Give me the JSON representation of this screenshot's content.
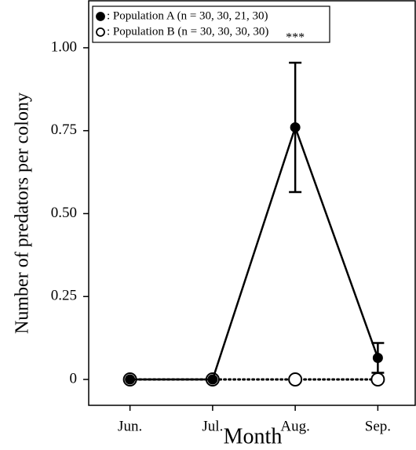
{
  "chart_data": {
    "type": "line",
    "x_label": "Month",
    "y_label": "Number of predators per colony",
    "categories": [
      "Jun.",
      "Jul.",
      "Aug.",
      "Sep."
    ],
    "series": [
      {
        "name": ": Population A (n = 30, 30, 21, 30)",
        "color": "#000000",
        "marker": "filled",
        "line_style": "solid",
        "values": [
          0,
          0,
          0.76,
          0.065
        ],
        "errors": [
          0,
          0,
          0.195,
          0.045
        ]
      },
      {
        "name": ": Population B (n = 30, 30, 30, 30)",
        "color": "#000000",
        "marker": "open",
        "line_style": "dotted",
        "values": [
          0,
          0,
          0,
          0
        ]
      }
    ],
    "annotations": [
      {
        "text": "***",
        "category": 2,
        "value": 1.0
      }
    ],
    "ylim": [
      -0.078,
      1.144
    ],
    "yticks": [
      0,
      0.25,
      {
        "value": 0.5,
        "label": "0.50"
      },
      0.75,
      {
        "value": 1,
        "label": "1.00"
      }
    ],
    "legend": "upper left",
    "grid": false
  }
}
